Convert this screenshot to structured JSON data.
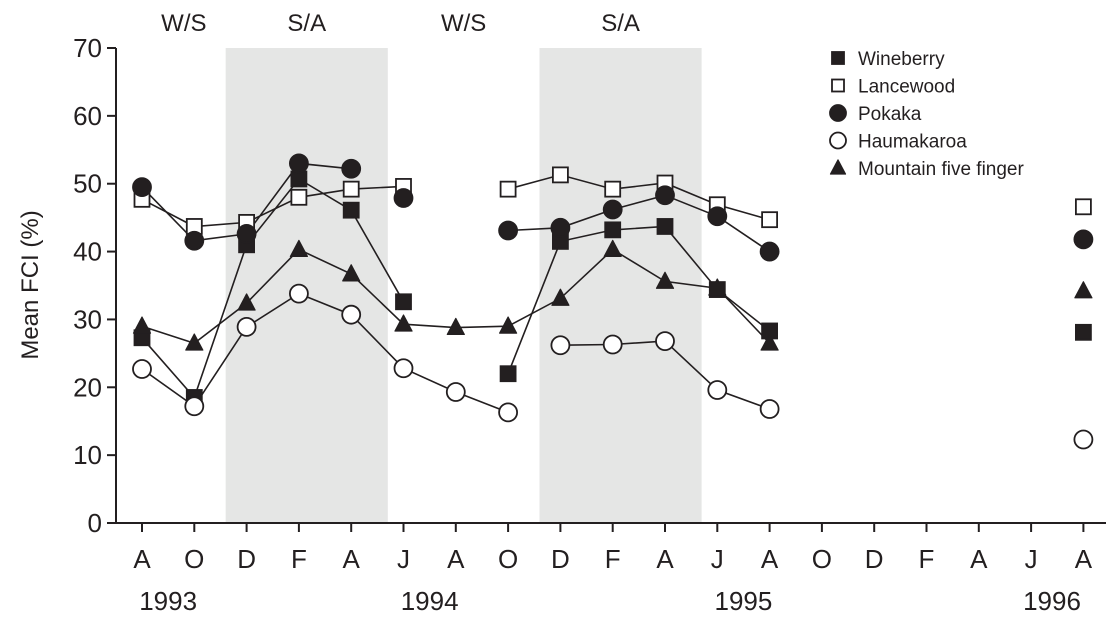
{
  "chart_data": {
    "type": "line",
    "ylabel": "Mean FCI (%)",
    "xlabel": "",
    "ylim": [
      0,
      70
    ],
    "yticks": [
      0,
      10,
      20,
      30,
      40,
      50,
      60,
      70
    ],
    "x_ticks": [
      "A",
      "O",
      "D",
      "F",
      "A",
      "J",
      "A",
      "O",
      "D",
      "F",
      "A",
      "J",
      "A",
      "O",
      "D",
      "F",
      "A",
      "J",
      "A"
    ],
    "years": [
      {
        "label": "1993",
        "at": 0.5
      },
      {
        "label": "1994",
        "at": 5.5
      },
      {
        "label": "1995",
        "at": 11.5
      },
      {
        "label": "1996",
        "at": 17.4
      }
    ],
    "seasons": [
      {
        "label": "W/S",
        "from": 0,
        "to": 1.6,
        "shaded": false
      },
      {
        "label": "S/A",
        "from": 1.6,
        "to": 4.7,
        "shaded": true
      },
      {
        "label": "W/S",
        "from": 4.7,
        "to": 7.6,
        "shaded": false
      },
      {
        "label": "S/A",
        "from": 7.6,
        "to": 10.7,
        "shaded": true
      }
    ],
    "legend_position": "top-right",
    "grid": false,
    "series": [
      {
        "name": "Wineberry",
        "marker": "square-filled",
        "segments": [
          [
            [
              0,
              27.3
            ],
            [
              1,
              18.5
            ],
            [
              2,
              41
            ],
            [
              3,
              50.7
            ],
            [
              4,
              46.1
            ],
            [
              5,
              32.6
            ]
          ],
          [
            [
              7,
              22
            ],
            [
              8,
              41.5
            ],
            [
              9,
              43.2
            ],
            [
              10,
              43.7
            ],
            [
              11,
              34.4
            ],
            [
              12,
              28.3
            ]
          ]
        ],
        "isolated": [
          [
            18,
            28.1
          ]
        ]
      },
      {
        "name": "Lancewood",
        "marker": "square-open",
        "segments": [
          [
            [
              0,
              47.7
            ],
            [
              1,
              43.7
            ],
            [
              2,
              44.3
            ],
            [
              3,
              48
            ],
            [
              4,
              49.2
            ],
            [
              5,
              49.6
            ]
          ],
          [
            [
              7,
              49.2
            ],
            [
              8,
              51.3
            ],
            [
              9,
              49.2
            ],
            [
              10,
              50.1
            ],
            [
              11,
              46.9
            ],
            [
              12,
              44.7
            ]
          ]
        ],
        "isolated": [
          [
            18,
            46.6
          ]
        ]
      },
      {
        "name": "Pokaka",
        "marker": "circle-filled",
        "segments": [
          [
            [
              0,
              49.5
            ],
            [
              1,
              41.6
            ],
            [
              2,
              42.6
            ],
            [
              3,
              53
            ],
            [
              4,
              52.2
            ]
          ],
          [
            [
              7,
              43.1
            ],
            [
              8,
              43.5
            ],
            [
              9,
              46.2
            ],
            [
              10,
              48.3
            ],
            [
              11,
              45.2
            ],
            [
              12,
              40
            ]
          ]
        ],
        "isolated": [
          [
            5,
            47.9
          ],
          [
            18,
            41.8
          ]
        ]
      },
      {
        "name": "Haumakaroa",
        "marker": "circle-open",
        "segments": [
          [
            [
              0,
              22.7
            ],
            [
              1,
              17.2
            ],
            [
              2,
              28.9
            ],
            [
              3,
              33.8
            ],
            [
              4,
              30.7
            ],
            [
              5,
              22.8
            ],
            [
              6,
              19.3
            ],
            [
              7,
              16.3
            ]
          ],
          [
            [
              8,
              26.2
            ],
            [
              9,
              26.3
            ],
            [
              10,
              26.8
            ],
            [
              11,
              19.6
            ],
            [
              12,
              16.8
            ]
          ]
        ],
        "isolated": [
          [
            18,
            12.3
          ]
        ]
      },
      {
        "name": "Mountain five finger",
        "marker": "triangle-filled",
        "segments": [
          [
            [
              0,
              29
            ],
            [
              1,
              26.5
            ],
            [
              2,
              32.4
            ],
            [
              3,
              40.3
            ],
            [
              4,
              36.7
            ],
            [
              5,
              29.3
            ],
            [
              6,
              28.8
            ],
            [
              7,
              29
            ],
            [
              8,
              33.1
            ],
            [
              9,
              40.3
            ],
            [
              10,
              35.6
            ],
            [
              11,
              34.6
            ],
            [
              12,
              26.5
            ]
          ]
        ],
        "isolated": [
          [
            18,
            34.2
          ]
        ]
      }
    ]
  }
}
